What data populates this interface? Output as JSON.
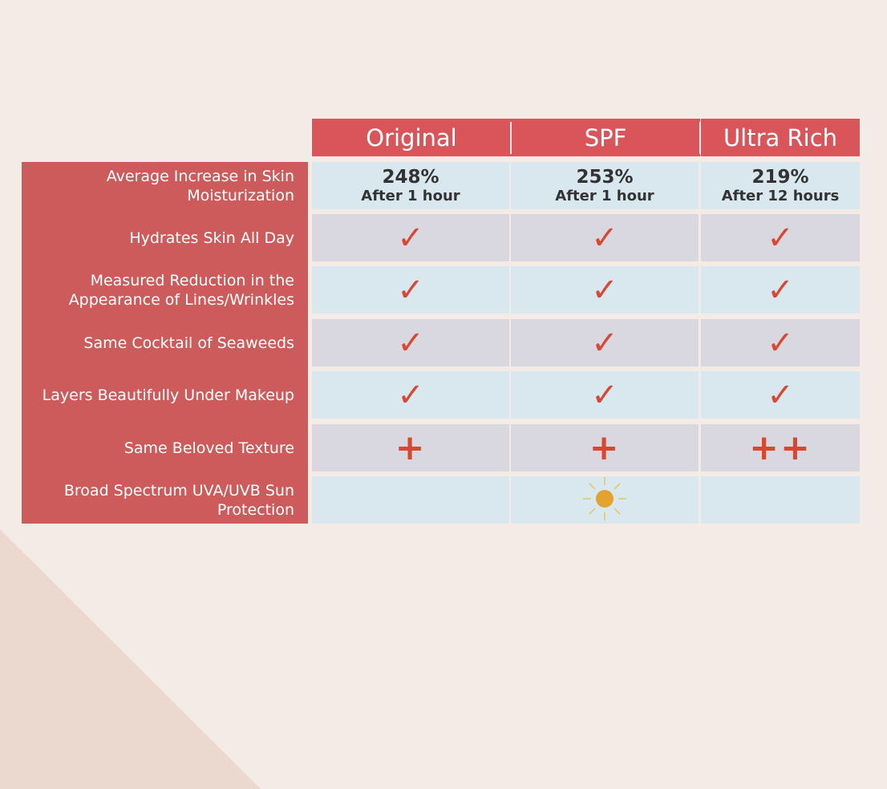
{
  "columns": [
    "Original",
    "SPF",
    "Ultra Rich"
  ],
  "rows": [
    {
      "label": "Average Increase in Skin Moisturization",
      "type": "text",
      "cells": [
        {
          "value": "248%",
          "sub": "After 1 hour"
        },
        {
          "value": "253%",
          "sub": "After 1 hour"
        },
        {
          "value": "219%",
          "sub": "After 12 hours"
        }
      ]
    },
    {
      "label": "Hydrates Skin All Day",
      "type": "icon",
      "cells": [
        "check-icon",
        "check-icon",
        "check-icon"
      ]
    },
    {
      "label": "Measured Reduction in the Appearance of Lines/Wrinkles",
      "type": "icon",
      "cells": [
        "check-icon",
        "check-icon",
        "check-icon"
      ]
    },
    {
      "label": "Same Cocktail of Seaweeds",
      "type": "icon",
      "cells": [
        "check-icon",
        "check-icon",
        "check-icon"
      ]
    },
    {
      "label": "Layers Beautifully Under Makeup",
      "type": "icon",
      "cells": [
        "check-icon",
        "check-icon",
        "check-icon"
      ]
    },
    {
      "label": "Same Beloved Texture",
      "type": "icon",
      "cells": [
        "plus-icon",
        "plus-icon",
        "double-plus-icon"
      ]
    },
    {
      "label": "Broad Spectrum UVA/UVB Sun Protection",
      "type": "icon",
      "cells": [
        "",
        "sun-icon",
        ""
      ]
    }
  ],
  "colors": {
    "header": "#d9555a",
    "label_column": "#cd5b5b",
    "check": "#d64a35",
    "sun": "#e2a42f"
  }
}
